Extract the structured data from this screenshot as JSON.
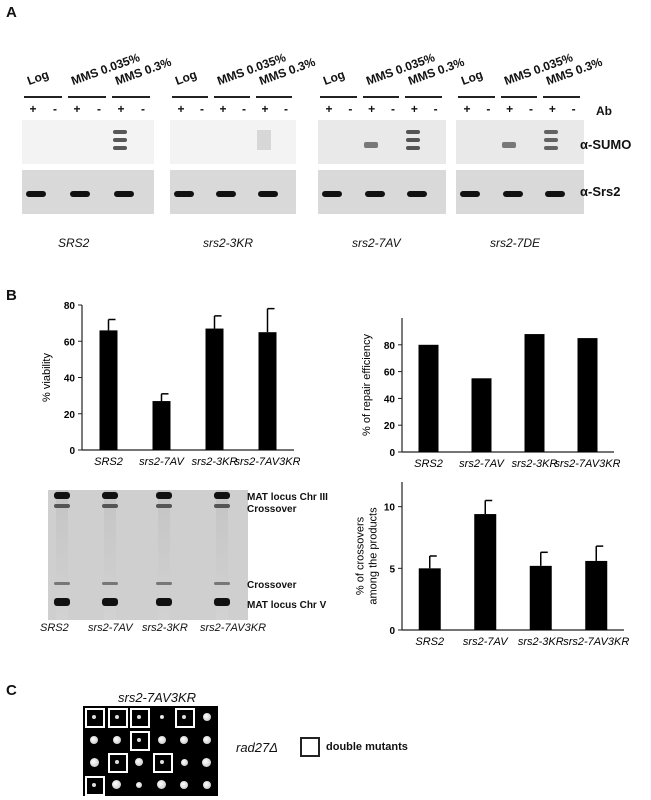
{
  "panels": {
    "a": "A",
    "b": "B",
    "c": "C"
  },
  "conditions": [
    "Log",
    "MMS 0.035%",
    "MMS 0.3%"
  ],
  "ab_label": "Ab",
  "plus": "+",
  "minus": "-",
  "antibodies": {
    "sumo": "α-SUMO",
    "srs2": "α-Srs2"
  },
  "blot_strains": [
    "SRS2",
    "srs2-3KR",
    "srs2-7AV",
    "srs2-7DE"
  ],
  "gel": {
    "strains": [
      "SRS2",
      "srs2-7AV",
      "srs2-3KR",
      "srs2-7AV3KR"
    ],
    "label_top1": "MAT locus Chr III",
    "label_top2": "Crossover",
    "label_mid": "Crossover",
    "label_bottom": "MAT locus Chr V"
  },
  "panel_c": {
    "strain_top": "srs2-7AV3KR",
    "strain_side": "rad27Δ",
    "legend": "double mutants"
  },
  "chart_data": [
    {
      "type": "bar",
      "title": "",
      "ylabel": "% viability",
      "categories": [
        "SRS2",
        "srs2-7AV",
        "srs2-3KR",
        "srs2-7AV3KR"
      ],
      "values": [
        66,
        27,
        67,
        65
      ],
      "errors": [
        6,
        4,
        7,
        13
      ],
      "ylim": [
        0,
        80
      ],
      "yticks": [
        0,
        20,
        40,
        60,
        80
      ]
    },
    {
      "type": "bar",
      "title": "",
      "ylabel": "% of repair efficiency",
      "categories": [
        "SRS2",
        "srs2-7AV",
        "srs2-3KR",
        "srs2-7AV3KR"
      ],
      "values": [
        80,
        55,
        88,
        85
      ],
      "ylim": [
        0,
        100
      ],
      "yticks": [
        0,
        20,
        40,
        60,
        80
      ]
    },
    {
      "type": "bar",
      "title": "",
      "ylabel": "% of crossovers among the products",
      "categories": [
        "SRS2",
        "srs2-7AV",
        "srs2-3KR",
        "srs2-7AV3KR"
      ],
      "values": [
        5,
        9.4,
        5.2,
        5.6
      ],
      "errors": [
        1,
        1.1,
        1.1,
        1.2
      ],
      "ylim": [
        0,
        12
      ],
      "yticks": [
        0,
        5,
        10
      ]
    }
  ]
}
